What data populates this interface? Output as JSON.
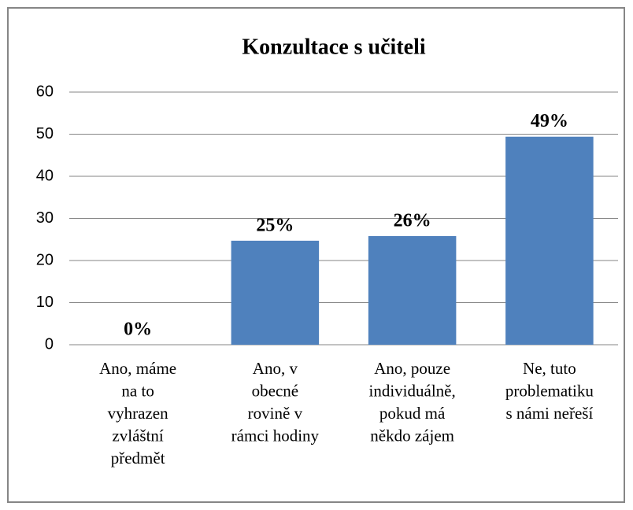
{
  "chart_data": {
    "type": "bar",
    "title": "Konzultace s učiteli",
    "categories": [
      [
        "Ano, máme",
        "na to",
        "vyhrazen",
        "zvláštní",
        "předmět"
      ],
      [
        "Ano, v",
        "obecné",
        "rovině v",
        "rámci hodiny"
      ],
      [
        "Ano, pouze",
        "individuálně,",
        "pokud má",
        "někdo zájem"
      ],
      [
        "Ne, tuto",
        "problematiku",
        "s námi neřeší"
      ]
    ],
    "values": [
      0,
      24.7,
      25.8,
      49.4
    ],
    "value_labels": [
      "0%",
      "25%",
      "26%",
      "49%"
    ],
    "color": "#4f81bd",
    "ylim": [
      0,
      60
    ],
    "yticks": [
      0,
      10,
      20,
      30,
      40,
      50,
      60
    ],
    "grid": true
  }
}
